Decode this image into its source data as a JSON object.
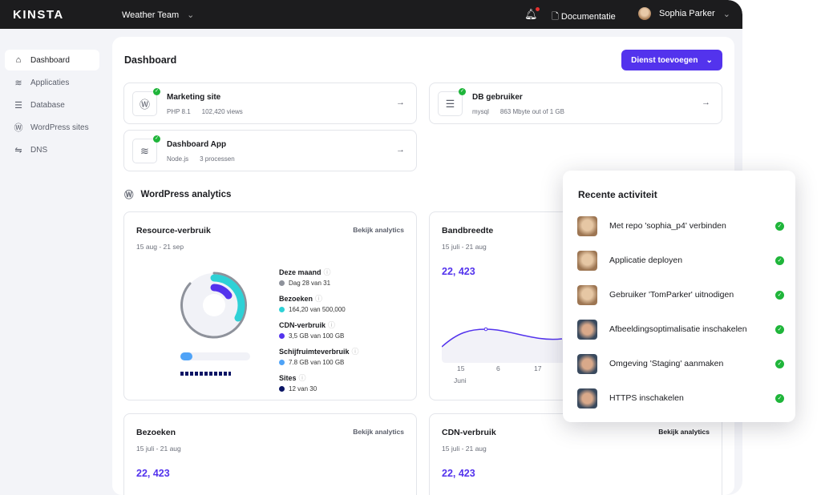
{
  "topbar": {
    "logo": "KINSTA",
    "team": "Weather Team",
    "docs": "Documentatie",
    "user": "Sophia Parker"
  },
  "sidebar": {
    "items": [
      {
        "label": "Dashboard",
        "icon": "home-icon",
        "active": true
      },
      {
        "label": "Applicaties",
        "icon": "layers-icon"
      },
      {
        "label": "Database",
        "icon": "database-icon"
      },
      {
        "label": "WordPress sites",
        "icon": "wordpress-icon"
      },
      {
        "label": "DNS",
        "icon": "dns-icon"
      }
    ]
  },
  "main": {
    "title": "Dashboard",
    "add_button": "Dienst toevoegen",
    "services": [
      {
        "title": "Marketing site",
        "meta1": "PHP 8.1",
        "meta2": "102,420 views",
        "icon": "wordpress-icon"
      },
      {
        "title": "DB gebruiker",
        "meta1": "mysql",
        "meta2": "863 Mbyte out of 1 GB",
        "icon": "database-icon"
      },
      {
        "title": "Dashboard App",
        "meta1": "Node.js",
        "meta2": "3 processen",
        "icon": "layers-icon"
      }
    ],
    "analytics_title": "WordPress analytics",
    "resource": {
      "title": "Resource-verbruik",
      "link": "Bekijk analytics",
      "dates": "15 aug - 21 sep",
      "legend": [
        {
          "label": "Deze maand",
          "value": "Dag 28 van 31",
          "color": "#8e929b"
        },
        {
          "label": "Bezoeken",
          "value": "164,20 van 500,000",
          "color": "#2ed1d6"
        },
        {
          "label": "CDN-verbruik",
          "value": "3,5 GB van 100 GB",
          "color": "#5333ed"
        },
        {
          "label": "Schijfruimteverbruik",
          "value": "7.8 GB van 100 GB",
          "color": "#4fa3f7"
        },
        {
          "label": "Sites",
          "value": "12 van 30",
          "color": "#0b1565"
        }
      ]
    },
    "bandwidth": {
      "title": "Bandbreedte",
      "dates": "15 juli - 21 aug",
      "value": "22, 423",
      "x_ticks": [
        "15",
        "6",
        "17"
      ],
      "x_month": "Juni"
    },
    "visits": {
      "title": "Bezoeken",
      "link": "Bekijk analytics",
      "dates": "15 juli - 21 aug",
      "value": "22, 423"
    },
    "cdn": {
      "title": "CDN-verbruik",
      "link": "Bekijk analytics",
      "dates": "15 juli - 21 aug",
      "value": "22, 423"
    }
  },
  "activity": {
    "title": "Recente activiteit",
    "items": [
      {
        "label": "Met repo 'sophia_p4' verbinden",
        "user": "female"
      },
      {
        "label": "Applicatie deployen",
        "user": "female"
      },
      {
        "label": "Gebruiker 'TomParker' uitnodigen",
        "user": "female"
      },
      {
        "label": "Afbeeldingsoptimalisatie inschakelen",
        "user": "male"
      },
      {
        "label": "Omgeving 'Staging' aanmaken",
        "user": "male"
      },
      {
        "label": "HTTPS inschakelen",
        "user": "male"
      }
    ]
  }
}
